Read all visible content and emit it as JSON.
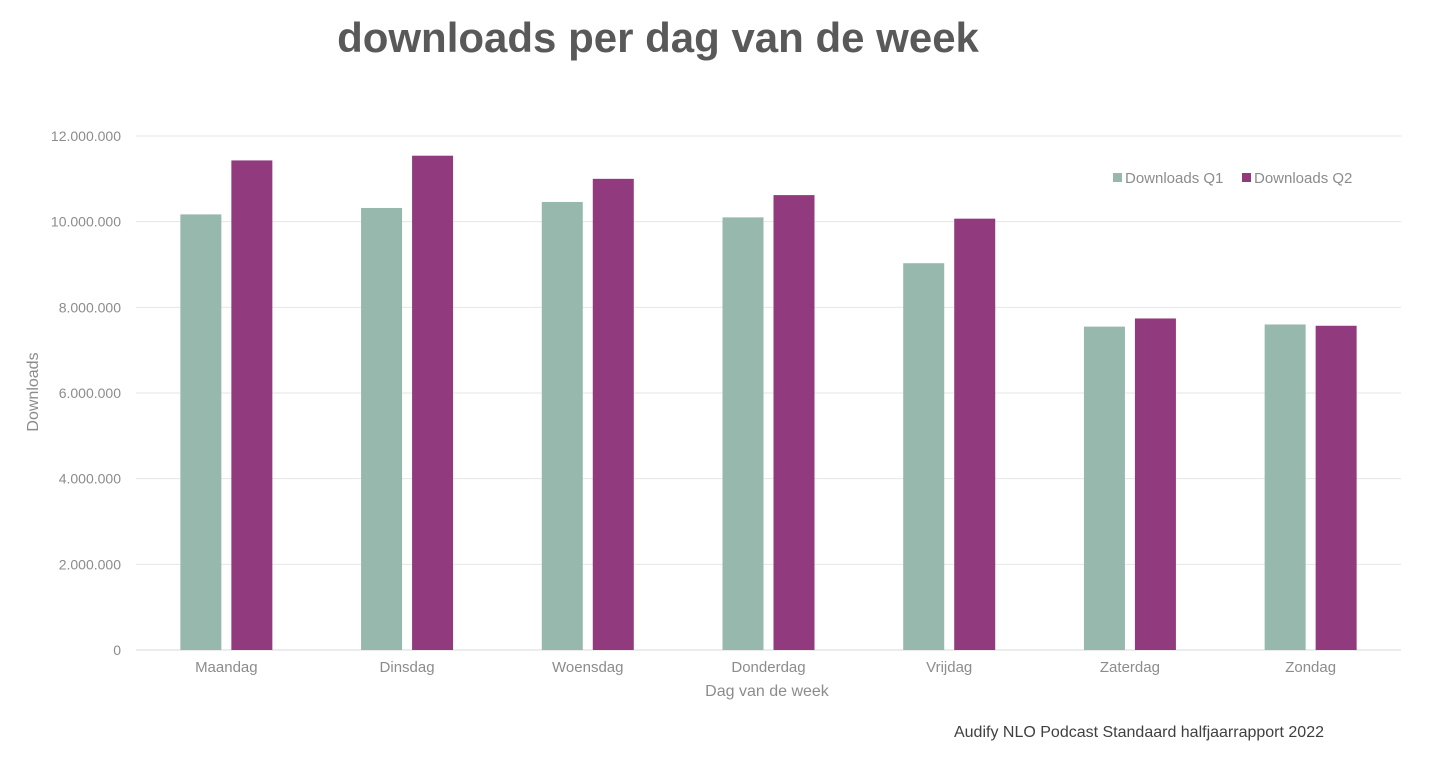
{
  "title": "downloads per dag van de week",
  "source": "Audify NLO Podcast Standaard halfjaarrapport 2022",
  "colors": {
    "q1": "#97b8ad",
    "q2": "#913a7e",
    "grid": "#e6e6e6",
    "text": "#8c8c8c"
  },
  "chart_data": {
    "type": "bar",
    "title": "downloads per dag van de week",
    "xlabel": "Dag van de week",
    "ylabel": "Downloads",
    "ylim": [
      0,
      12000000
    ],
    "yticks": [
      0,
      2000000,
      4000000,
      6000000,
      8000000,
      10000000,
      12000000
    ],
    "ytick_labels": [
      "0",
      "2.000.000",
      "4.000.000",
      "6.000.000",
      "8.000.000",
      "10.000.000",
      "12.000.000"
    ],
    "categories": [
      "Maandag",
      "Dinsdag",
      "Woensdag",
      "Donderdag",
      "Vrijdag",
      "Zaterdag",
      "Zondag"
    ],
    "series": [
      {
        "name": "Downloads Q1",
        "values": [
          10170000,
          10320000,
          10460000,
          10100000,
          9030000,
          7550000,
          7600000
        ]
      },
      {
        "name": "Downloads Q2",
        "values": [
          11430000,
          11540000,
          11000000,
          10620000,
          10070000,
          7740000,
          7570000
        ]
      }
    ],
    "grid": true,
    "legend_position": "top-right"
  }
}
